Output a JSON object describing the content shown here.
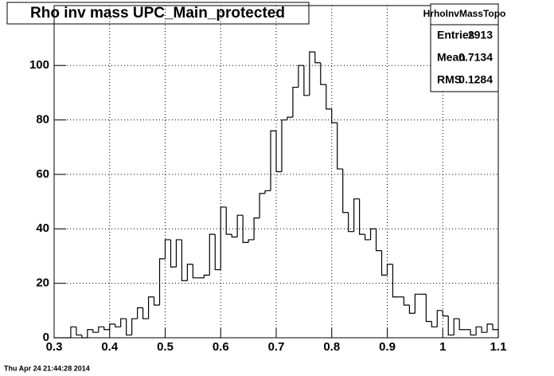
{
  "chart_data": {
    "type": "histogram",
    "title": "Rho inv mass UPC_Main_protected",
    "bins": [
      0.3,
      0.31,
      0.32,
      0.33,
      0.34,
      0.35,
      0.36,
      0.37,
      0.38,
      0.39,
      0.4,
      0.41,
      0.42,
      0.43,
      0.44,
      0.45,
      0.46,
      0.47,
      0.48,
      0.49,
      0.5,
      0.51,
      0.52,
      0.53,
      0.54,
      0.55,
      0.56,
      0.57,
      0.58,
      0.59,
      0.6,
      0.61,
      0.62,
      0.63,
      0.64,
      0.65,
      0.66,
      0.67,
      0.68,
      0.69,
      0.7,
      0.71,
      0.72,
      0.73,
      0.74,
      0.75,
      0.76,
      0.77,
      0.78,
      0.79,
      0.8,
      0.81,
      0.82,
      0.83,
      0.84,
      0.85,
      0.86,
      0.87,
      0.88,
      0.89,
      0.9,
      0.91,
      0.92,
      0.93,
      0.94,
      0.95,
      0.96,
      0.97,
      0.98,
      0.99,
      1.0,
      1.01,
      1.02,
      1.03,
      1.04,
      1.05,
      1.06,
      1.07,
      1.08,
      1.09,
      1.1
    ],
    "values": [
      0,
      0,
      0,
      4,
      1,
      0,
      3,
      2,
      4,
      3,
      5,
      4,
      7,
      1,
      7,
      11,
      7,
      15,
      12,
      29,
      36,
      26,
      36,
      21,
      27,
      22,
      22,
      23,
      38,
      25,
      48,
      38,
      37,
      45,
      35,
      36,
      44,
      53,
      54,
      76,
      61,
      80,
      81,
      92,
      100,
      89,
      105,
      101,
      93,
      84,
      79,
      62,
      46,
      39,
      51,
      38,
      36,
      40,
      32,
      23,
      27,
      15,
      15,
      12,
      9,
      16,
      16,
      6,
      4,
      10,
      8,
      1,
      7,
      3,
      3,
      1,
      4,
      2,
      5,
      3
    ],
    "color": "#000000",
    "xlim": [
      0.3,
      1.1
    ],
    "xticks": [
      0.3,
      0.4,
      0.5,
      0.6,
      0.7,
      0.8,
      0.9,
      1,
      1.1
    ],
    "ylim": [
      0,
      122
    ],
    "yticks": [
      0,
      20,
      40,
      60,
      80,
      100
    ],
    "grid": true,
    "stats": {
      "name": "HrhoInvMassTopo",
      "rows": [
        {
          "label": "Entries",
          "value": 2913
        },
        {
          "label": "Mean",
          "value": 0.7134
        },
        {
          "label": "RMS",
          "value": 0.1284
        }
      ]
    },
    "timestamp": "Thu Apr 24 21:44:28 2014"
  }
}
